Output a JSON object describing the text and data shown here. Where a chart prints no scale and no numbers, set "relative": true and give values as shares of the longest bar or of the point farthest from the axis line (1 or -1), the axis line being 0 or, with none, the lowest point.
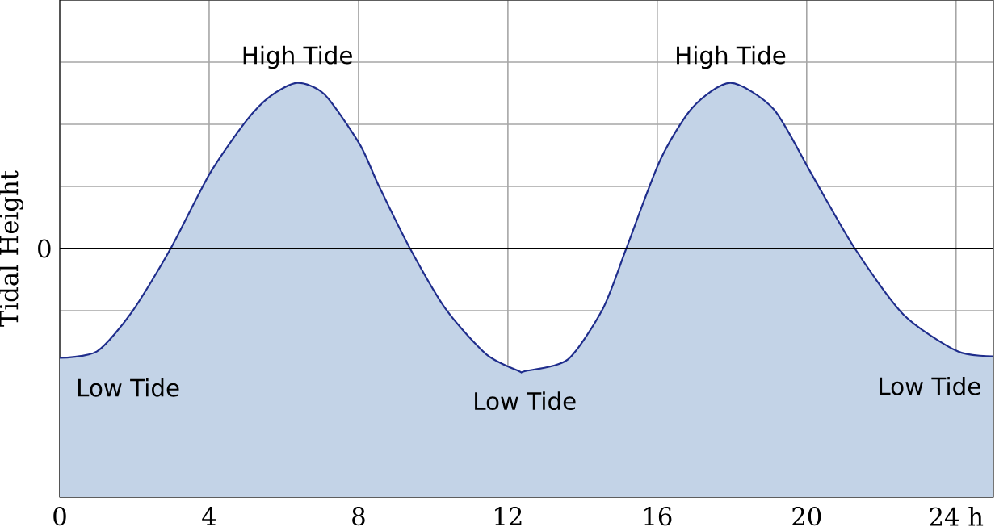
{
  "chart_data": {
    "type": "area",
    "relative": true,
    "ylabel": "Tidal Height",
    "xlim": [
      0,
      25
    ],
    "xticks": [
      0,
      4,
      8,
      12,
      16,
      20,
      {
        "value": 24,
        "label": "24 h"
      }
    ],
    "grid": true,
    "ref_lines": [
      {
        "axis": "y",
        "value": 0,
        "label": "0",
        "color": "#000000"
      }
    ],
    "series": [
      {
        "color": "#1f2d8c",
        "x": [
          0,
          1.0,
          1.94,
          2.97,
          4.01,
          4.99,
          5.64,
          6.36,
          7.09,
          8.03,
          8.54,
          9.38,
          10.35,
          11.43,
          12.3,
          12.45,
          13.6,
          14.55,
          15.17,
          16.07,
          16.94,
          17.96,
          19.12,
          20.13,
          21.29,
          22.6,
          24.04,
          25
        ],
        "values": [
          -0.66,
          -0.62,
          -0.38,
          0,
          0.45,
          0.77,
          0.92,
          1.0,
          0.93,
          0.63,
          0.38,
          0,
          -0.37,
          -0.64,
          -0.74,
          -0.74,
          -0.67,
          -0.36,
          0,
          0.53,
          0.85,
          1.0,
          0.84,
          0.45,
          0,
          -0.4,
          -0.62,
          -0.65
        ]
      }
    ],
    "annotations": [
      {
        "text": "High Tide",
        "x": 6.36,
        "y": 1.0
      },
      {
        "text": "High Tide",
        "x": 17.96,
        "y": 1.0
      },
      {
        "text": "Low Tide",
        "x": 0,
        "y": -0.66
      },
      {
        "text": "Low Tide",
        "x": 12.45,
        "y": -0.74
      },
      {
        "text": "Low Tide",
        "x": 25,
        "y": -0.65
      }
    ]
  }
}
